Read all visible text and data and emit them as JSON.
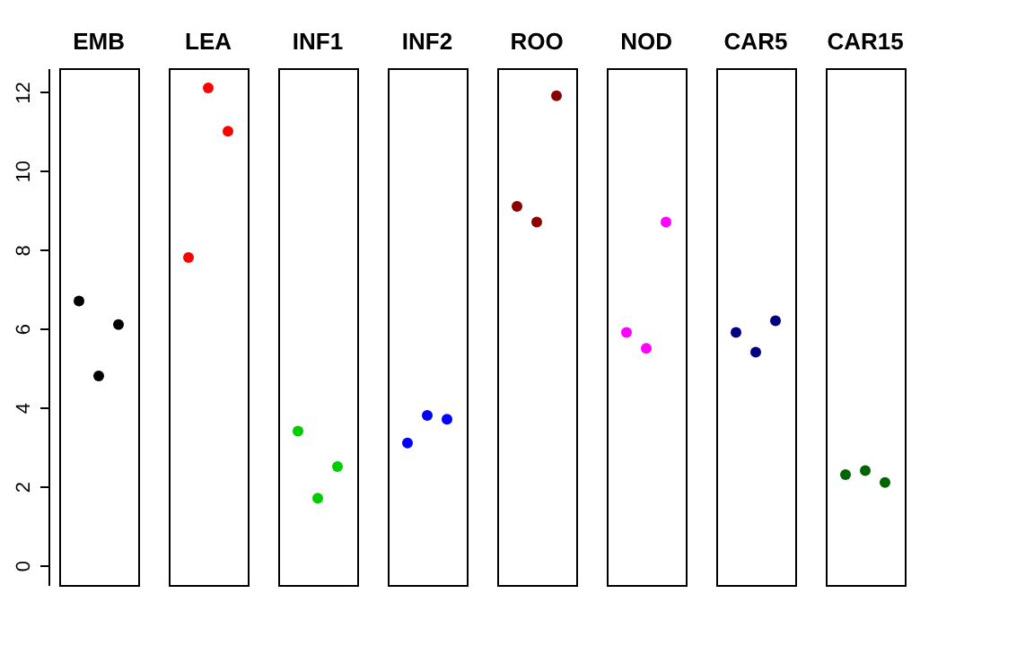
{
  "chart_data": {
    "type": "scatter",
    "categories": [
      "EMB",
      "LEA",
      "INF1",
      "INF2",
      "ROO",
      "NOD",
      "CAR5",
      "CAR15"
    ],
    "series": [
      {
        "values": [
          6.7,
          7.8,
          3.4,
          3.1,
          9.1,
          5.9,
          5.9,
          2.3
        ],
        "colors": [
          "#000000",
          "#ff0000",
          "#00cd00",
          "#0000ff",
          "#8b0000",
          "#ff00ff",
          "#000080",
          "#006400"
        ]
      },
      {
        "values": [
          4.8,
          12.1,
          1.7,
          3.8,
          8.7,
          5.5,
          5.4,
          2.4
        ],
        "colors": [
          "#000000",
          "#ff0000",
          "#00cd00",
          "#0000ff",
          "#8b0000",
          "#ff00ff",
          "#000080",
          "#006400"
        ]
      },
      {
        "values": [
          6.1,
          11.0,
          2.5,
          3.7,
          11.9,
          8.7,
          6.2,
          2.1
        ],
        "colors": [
          "#000000",
          "#ff0000",
          "#00cd00",
          "#0000ff",
          "#8b0000",
          "#ff00ff",
          "#000080",
          "#006400"
        ]
      }
    ],
    "ylim": [
      -0.5,
      12.6
    ],
    "yticks": [
      0,
      2,
      4,
      6,
      8,
      10,
      12
    ],
    "marker": "circle"
  }
}
